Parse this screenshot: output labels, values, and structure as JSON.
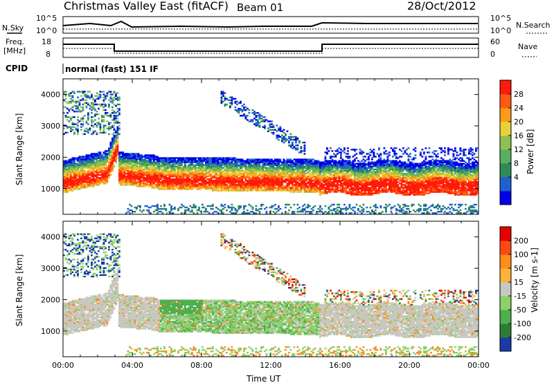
{
  "header": {
    "title": "Christmas Valley East (fitACF)",
    "beam": "Beam 01",
    "date": "28/Oct/2012"
  },
  "noise_panel": {
    "left_label": "N.Sky",
    "left_ticks": [
      "10^5",
      "10^0"
    ],
    "right_label": "N.Search",
    "right_ticks": [
      "10^5",
      "10^0"
    ]
  },
  "freq_panel": {
    "left_label_1": "Freq.",
    "left_label_2": "[MHz]",
    "left_ticks": [
      "18",
      "8"
    ],
    "right_label": "Nave",
    "right_ticks": [
      "60",
      "0"
    ]
  },
  "cpid": {
    "label": "CPID",
    "text": "normal (fast) 151 IF"
  },
  "chart_data": [
    {
      "type": "heatmap",
      "name": "power",
      "ylabel": "Slant Range [km]",
      "yticks": [
        "4000",
        "3000",
        "2000",
        "1000"
      ],
      "ylim": [
        180,
        4500
      ],
      "xlim": [
        0,
        24
      ],
      "colorbar": {
        "label": "Power [dB]",
        "ticks": [
          "28",
          "24",
          "20",
          "16",
          "12",
          "8",
          "4"
        ],
        "colors": [
          "#0000e6",
          "#1f5fd1",
          "#2e8b57",
          "#5aae61",
          "#8fc050",
          "#e8d23a",
          "#ff9b1a",
          "#ff5a12",
          "#ff1a0a"
        ]
      }
    },
    {
      "type": "heatmap",
      "name": "velocity",
      "ylabel": "Slant Range [km]",
      "yticks": [
        "4000",
        "3000",
        "2000",
        "1000"
      ],
      "ylim": [
        180,
        4500
      ],
      "xlim": [
        0,
        24
      ],
      "xticks": [
        "00:00",
        "04:00",
        "08:00",
        "12:00",
        "16:00",
        "20:00",
        "00:00"
      ],
      "xlabel": "Time UT",
      "colorbar": {
        "label": "Velocity [m s-1]",
        "ticks": [
          "200",
          "100",
          "50",
          "15",
          "-15",
          "-50",
          "-100",
          "-200"
        ],
        "colors": [
          "#1a3aa8",
          "#2e7d32",
          "#4caf50",
          "#8bd16a",
          "#c8c8c0",
          "#ffb23c",
          "#ff8c1a",
          "#ff4a14",
          "#e60000"
        ]
      }
    }
  ]
}
